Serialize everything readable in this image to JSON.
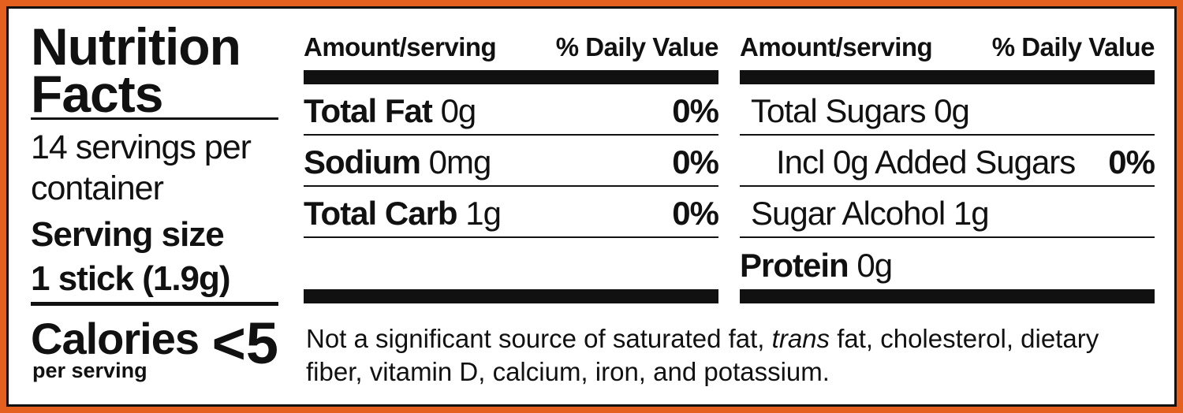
{
  "title": "Nutrition Facts",
  "servings": "14 servings per container",
  "serving_size_label": "Serving size",
  "serving_size": "1 stick (1.9g)",
  "calories_label": "Calories",
  "calories_sub": "per serving",
  "calories": "<5",
  "columns": [
    {
      "header": {
        "amount": "Amount/serving",
        "dv": "% Daily Value"
      },
      "rows": [
        {
          "name": "Total Fat",
          "amount": "0g",
          "dv": "0%"
        },
        {
          "name": "Sodium",
          "amount": "0mg",
          "dv": "0%"
        },
        {
          "name": "Total Carb",
          "amount": "1g",
          "dv": "0%"
        }
      ]
    },
    {
      "header": {
        "amount": "Amount/serving",
        "dv": "% Daily Value"
      },
      "rows": [
        {
          "name": "Total Sugars",
          "amount": "0g"
        },
        {
          "name": "Incl 0g Added Sugars",
          "dv": "0%"
        },
        {
          "name": "Sugar Alcohol",
          "amount": "1g"
        },
        {
          "name": "Protein",
          "amount": "0g"
        }
      ]
    }
  ],
  "footnote": {
    "before": "Not a significant source of saturated fat, ",
    "italic": "trans",
    "after": " fat, cholesterol, dietary fiber, vitamin D, calcium, iron, and potassium."
  }
}
